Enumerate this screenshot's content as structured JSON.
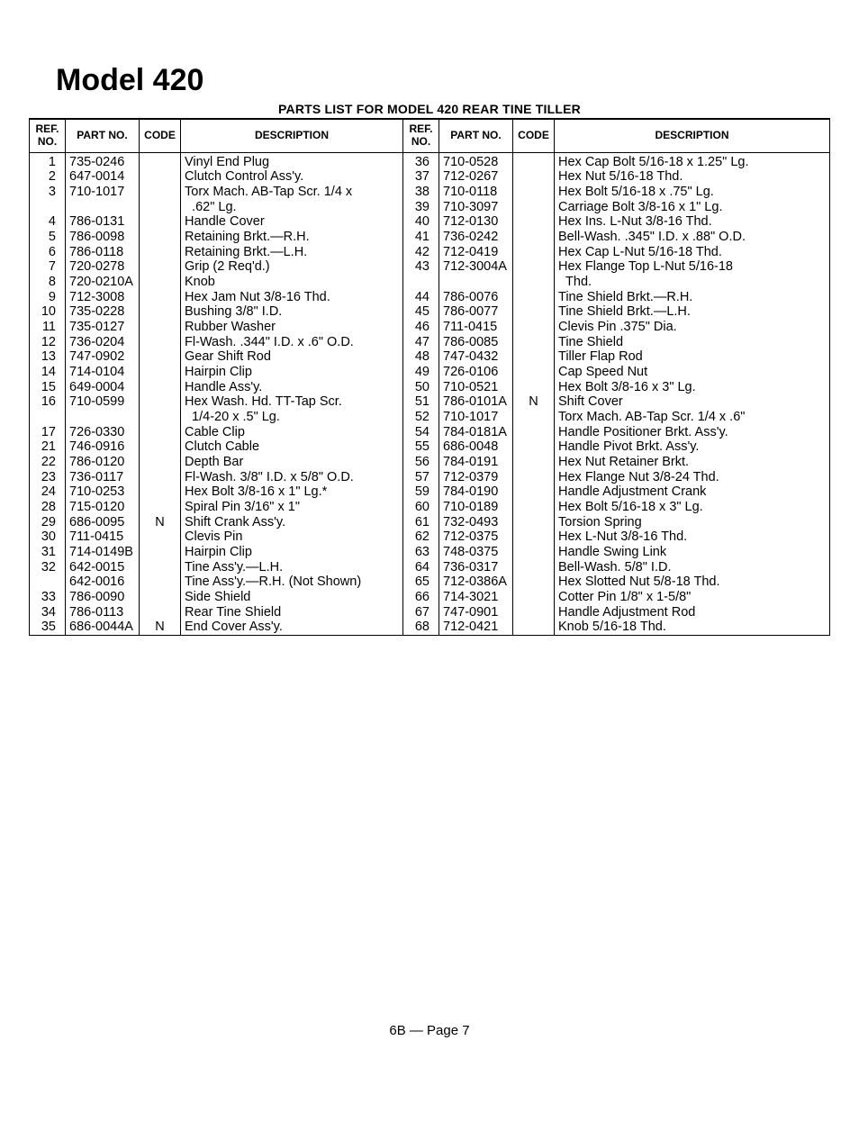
{
  "title": "Model 420",
  "subtitle": "PARTS LIST FOR MODEL 420 REAR TINE TILLER",
  "headers": {
    "ref": "REF. NO.",
    "part": "PART NO.",
    "code": "CODE",
    "desc": "DESCRIPTION"
  },
  "left": [
    {
      "ref": "1",
      "part": "735-0246",
      "code": "",
      "desc": "Vinyl End Plug"
    },
    {
      "ref": "2",
      "part": "647-0014",
      "code": "",
      "desc": "Clutch Control Ass'y."
    },
    {
      "ref": "3",
      "part": "710-1017",
      "code": "",
      "desc": "Torx Mach. AB-Tap Scr. 1/4 x"
    },
    {
      "ref": "",
      "part": "",
      "code": "",
      "desc": "  .62\" Lg."
    },
    {
      "ref": "4",
      "part": "786-0131",
      "code": "",
      "desc": "Handle Cover"
    },
    {
      "ref": "5",
      "part": "786-0098",
      "code": "",
      "desc": "Retaining Brkt.—R.H."
    },
    {
      "ref": "6",
      "part": "786-0118",
      "code": "",
      "desc": "Retaining Brkt.—L.H."
    },
    {
      "ref": "7",
      "part": "720-0278",
      "code": "",
      "desc": "Grip (2 Req'd.)"
    },
    {
      "ref": "8",
      "part": "720-0210A",
      "code": "",
      "desc": "Knob"
    },
    {
      "ref": "9",
      "part": "712-3008",
      "code": "",
      "desc": "Hex Jam Nut 3/8-16 Thd."
    },
    {
      "ref": "10",
      "part": "735-0228",
      "code": "",
      "desc": "Bushing 3/8\" I.D."
    },
    {
      "ref": "11",
      "part": "735-0127",
      "code": "",
      "desc": "Rubber Washer"
    },
    {
      "ref": "12",
      "part": "736-0204",
      "code": "",
      "desc": "Fl-Wash. .344\" I.D. x .6\" O.D."
    },
    {
      "ref": "13",
      "part": "747-0902",
      "code": "",
      "desc": "Gear Shift Rod"
    },
    {
      "ref": "14",
      "part": "714-0104",
      "code": "",
      "desc": "Hairpin Clip"
    },
    {
      "ref": "15",
      "part": "649-0004",
      "code": "",
      "desc": "Handle Ass'y."
    },
    {
      "ref": "16",
      "part": "710-0599",
      "code": "",
      "desc": "Hex Wash. Hd. TT-Tap Scr."
    },
    {
      "ref": "",
      "part": "",
      "code": "",
      "desc": "  1/4-20 x .5\" Lg."
    },
    {
      "ref": "17",
      "part": "726-0330",
      "code": "",
      "desc": "Cable Clip"
    },
    {
      "ref": "21",
      "part": "746-0916",
      "code": "",
      "desc": "Clutch Cable"
    },
    {
      "ref": "22",
      "part": "786-0120",
      "code": "",
      "desc": "Depth Bar"
    },
    {
      "ref": "23",
      "part": "736-0117",
      "code": "",
      "desc": "Fl-Wash. 3/8\" I.D. x 5/8\" O.D."
    },
    {
      "ref": "24",
      "part": "710-0253",
      "code": "",
      "desc": "Hex Bolt 3/8-16 x 1\" Lg.*"
    },
    {
      "ref": "28",
      "part": "715-0120",
      "code": "",
      "desc": "Spiral Pin 3/16\" x 1\""
    },
    {
      "ref": "29",
      "part": "686-0095",
      "code": "N",
      "desc": "Shift Crank Ass'y."
    },
    {
      "ref": "30",
      "part": "711-0415",
      "code": "",
      "desc": "Clevis Pin"
    },
    {
      "ref": "31",
      "part": "714-0149B",
      "code": "",
      "desc": "Hairpin Clip"
    },
    {
      "ref": "32",
      "part": "642-0015",
      "code": "",
      "desc": "Tine Ass'y.—L.H."
    },
    {
      "ref": "",
      "part": "642-0016",
      "code": "",
      "desc": "Tine Ass'y.—R.H. (Not Shown)"
    },
    {
      "ref": "33",
      "part": "786-0090",
      "code": "",
      "desc": "Side Shield"
    },
    {
      "ref": "34",
      "part": "786-0113",
      "code": "",
      "desc": "Rear Tine Shield"
    },
    {
      "ref": "35",
      "part": "686-0044A",
      "code": "N",
      "desc": "End Cover Ass'y."
    }
  ],
  "right": [
    {
      "ref": "36",
      "part": "710-0528",
      "code": "",
      "desc": "Hex Cap Bolt 5/16-18 x 1.25\" Lg."
    },
    {
      "ref": "37",
      "part": "712-0267",
      "code": "",
      "desc": "Hex Nut 5/16-18 Thd."
    },
    {
      "ref": "38",
      "part": "710-0118",
      "code": "",
      "desc": "Hex Bolt 5/16-18 x .75\" Lg."
    },
    {
      "ref": "39",
      "part": "710-3097",
      "code": "",
      "desc": "Carriage Bolt 3/8-16 x 1\" Lg."
    },
    {
      "ref": "40",
      "part": "712-0130",
      "code": "",
      "desc": "Hex Ins. L-Nut 3/8-16 Thd."
    },
    {
      "ref": "41",
      "part": "736-0242",
      "code": "",
      "desc": "Bell-Wash. .345\" I.D. x .88\" O.D."
    },
    {
      "ref": "42",
      "part": "712-0419",
      "code": "",
      "desc": "Hex Cap L-Nut 5/16-18 Thd."
    },
    {
      "ref": "43",
      "part": "712-3004A",
      "code": "",
      "desc": "Hex Flange Top L-Nut 5/16-18"
    },
    {
      "ref": "",
      "part": "",
      "code": "",
      "desc": "  Thd."
    },
    {
      "ref": "44",
      "part": "786-0076",
      "code": "",
      "desc": "Tine Shield Brkt.—R.H."
    },
    {
      "ref": "45",
      "part": "786-0077",
      "code": "",
      "desc": "Tine Shield Brkt.—L.H."
    },
    {
      "ref": "46",
      "part": "711-0415",
      "code": "",
      "desc": "Clevis Pin .375\" Dia."
    },
    {
      "ref": "47",
      "part": "786-0085",
      "code": "",
      "desc": "Tine Shield"
    },
    {
      "ref": "48",
      "part": "747-0432",
      "code": "",
      "desc": "Tiller Flap Rod"
    },
    {
      "ref": "49",
      "part": "726-0106",
      "code": "",
      "desc": "Cap Speed Nut"
    },
    {
      "ref": "50",
      "part": "710-0521",
      "code": "",
      "desc": "Hex Bolt 3/8-16 x 3\" Lg."
    },
    {
      "ref": "51",
      "part": "786-0101A",
      "code": "N",
      "desc": "Shift Cover"
    },
    {
      "ref": "52",
      "part": "710-1017",
      "code": "",
      "desc": "Torx Mach. AB-Tap Scr. 1/4 x .6\""
    },
    {
      "ref": "54",
      "part": "784-0181A",
      "code": "",
      "desc": "Handle Positioner Brkt. Ass'y."
    },
    {
      "ref": "55",
      "part": "686-0048",
      "code": "",
      "desc": "Handle Pivot Brkt. Ass'y."
    },
    {
      "ref": "56",
      "part": "784-0191",
      "code": "",
      "desc": "Hex Nut Retainer Brkt."
    },
    {
      "ref": "57",
      "part": "712-0379",
      "code": "",
      "desc": "Hex Flange Nut 3/8-24 Thd."
    },
    {
      "ref": "59",
      "part": "784-0190",
      "code": "",
      "desc": "Handle Adjustment Crank"
    },
    {
      "ref": "60",
      "part": "710-0189",
      "code": "",
      "desc": "Hex Bolt 5/16-18 x 3\" Lg."
    },
    {
      "ref": "61",
      "part": "732-0493",
      "code": "",
      "desc": "Torsion Spring"
    },
    {
      "ref": "62",
      "part": "712-0375",
      "code": "",
      "desc": "Hex L-Nut 3/8-16 Thd."
    },
    {
      "ref": "63",
      "part": "748-0375",
      "code": "",
      "desc": "Handle Swing Link"
    },
    {
      "ref": "64",
      "part": "736-0317",
      "code": "",
      "desc": "Bell-Wash. 5/8\" I.D."
    },
    {
      "ref": "65",
      "part": "712-0386A",
      "code": "",
      "desc": "Hex Slotted Nut 5/8-18 Thd."
    },
    {
      "ref": "66",
      "part": "714-3021",
      "code": "",
      "desc": "Cotter Pin 1/8\" x 1-5/8\""
    },
    {
      "ref": "67",
      "part": "747-0901",
      "code": "",
      "desc": "Handle Adjustment Rod"
    },
    {
      "ref": "68",
      "part": "712-0421",
      "code": "",
      "desc": "Knob 5/16-18 Thd."
    }
  ],
  "footer": "6B — Page 7"
}
